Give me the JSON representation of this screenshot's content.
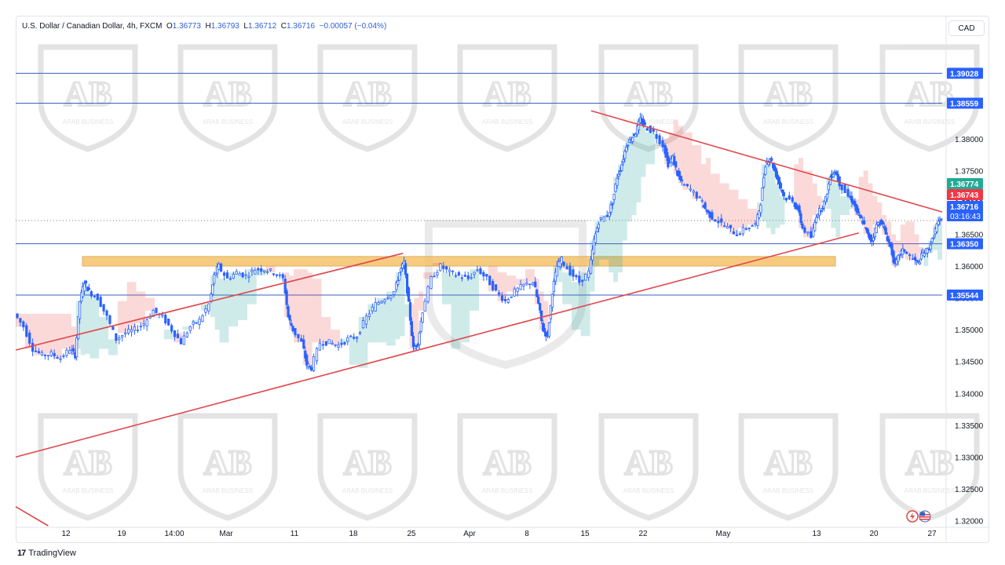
{
  "header": {
    "symbol": "U.S. Dollar / Canadian Dollar, 4h, FXCM",
    "o_label": "O",
    "o_value": "1.36773",
    "h_label": "H",
    "h_value": "1.36793",
    "l_label": "L",
    "l_value": "1.36712",
    "c_label": "C",
    "c_value": "1.36716",
    "change": "−0.00057 (−0.04%)"
  },
  "currency_button": "CAD",
  "footer": {
    "brand": "TradingView",
    "logo_mark": "17"
  },
  "watermark": {
    "text": "ARAB BUSINESS"
  },
  "colors": {
    "up": "#2962ff",
    "down": "#2962ff",
    "hline": "#3a5fbf",
    "trendline": "#e0474c",
    "zone_fill": "#f5c26b",
    "zone_stroke": "#d9a341",
    "cloud_green": "#26a69a",
    "cloud_red": "#ef5350",
    "price_tag": "#2962ff",
    "up_tag": "#22ab94",
    "down_tag": "#f23645"
  },
  "chart_data": {
    "type": "candlestick",
    "instrument": "USDCAD",
    "timeframe": "4h",
    "ylim": [
      1.3192,
      1.3944
    ],
    "y_ticks": [
      "1.38000",
      "1.37500",
      "1.37000",
      "1.36500",
      "1.36000",
      "1.35500",
      "1.35000",
      "1.34500",
      "1.34000",
      "1.33500",
      "1.33000",
      "1.32500",
      "1.32000"
    ],
    "x_ticks": [
      "12",
      "19",
      "14:00",
      "Mar",
      "11",
      "18",
      "25",
      "Apr",
      "8",
      "15",
      "22",
      "May",
      "13",
      "20",
      "27"
    ],
    "horizontal_levels": [
      {
        "label": "1.39028",
        "value": 1.39028
      },
      {
        "label": "1.38559",
        "value": 1.38559
      },
      {
        "label": "1.36350",
        "value": 1.3635
      },
      {
        "label": "1.35544",
        "value": 1.35544
      }
    ],
    "price_tags": [
      {
        "label": "1.36774",
        "value": 1.36774,
        "kind": "up"
      },
      {
        "label": "1.36743",
        "value": 1.36743,
        "kind": "down"
      },
      {
        "label": "1.36716",
        "value": 1.36716,
        "kind": "last",
        "countdown": "03:16:43"
      }
    ],
    "support_zone": {
      "x_from": "Feb 13",
      "x_to": "May 17",
      "y_from": 1.36,
      "y_to": 1.3615
    },
    "trendlines": [
      {
        "from": [
          0,
          1.3468
        ],
        "to": [
          0.418,
          1.362
        ]
      },
      {
        "from": [
          0,
          1.33
        ],
        "to": [
          0.91,
          1.3652
        ]
      },
      {
        "from": [
          0.621,
          1.3844
        ],
        "to": [
          1.0,
          1.3685
        ]
      },
      {
        "from": [
          0,
          1.3222
        ],
        "to": [
          0.035,
          1.3192
        ]
      }
    ],
    "close_path": [
      [
        0.0,
        1.3525
      ],
      [
        0.01,
        1.3505
      ],
      [
        0.02,
        1.347
      ],
      [
        0.03,
        1.346
      ],
      [
        0.04,
        1.3462
      ],
      [
        0.05,
        1.3455
      ],
      [
        0.06,
        1.347
      ],
      [
        0.065,
        1.346
      ],
      [
        0.07,
        1.3545
      ],
      [
        0.075,
        1.3575
      ],
      [
        0.08,
        1.356
      ],
      [
        0.09,
        1.355
      ],
      [
        0.1,
        1.352
      ],
      [
        0.11,
        1.3485
      ],
      [
        0.12,
        1.3495
      ],
      [
        0.13,
        1.35
      ],
      [
        0.14,
        1.351
      ],
      [
        0.15,
        1.353
      ],
      [
        0.16,
        1.352
      ],
      [
        0.17,
        1.35
      ],
      [
        0.18,
        1.348
      ],
      [
        0.19,
        1.3505
      ],
      [
        0.2,
        1.3515
      ],
      [
        0.21,
        1.354
      ],
      [
        0.215,
        1.3585
      ],
      [
        0.22,
        1.36
      ],
      [
        0.23,
        1.358
      ],
      [
        0.24,
        1.359
      ],
      [
        0.25,
        1.3585
      ],
      [
        0.26,
        1.3595
      ],
      [
        0.27,
        1.3595
      ],
      [
        0.28,
        1.359
      ],
      [
        0.29,
        1.358
      ],
      [
        0.295,
        1.352
      ],
      [
        0.3,
        1.35
      ],
      [
        0.31,
        1.348
      ],
      [
        0.315,
        1.3445
      ],
      [
        0.32,
        1.344
      ],
      [
        0.33,
        1.348
      ],
      [
        0.34,
        1.348
      ],
      [
        0.35,
        1.3475
      ],
      [
        0.36,
        1.3485
      ],
      [
        0.37,
        1.349
      ],
      [
        0.38,
        1.352
      ],
      [
        0.39,
        1.354
      ],
      [
        0.4,
        1.355
      ],
      [
        0.41,
        1.356
      ],
      [
        0.415,
        1.359
      ],
      [
        0.42,
        1.3605
      ],
      [
        0.425,
        1.354
      ],
      [
        0.43,
        1.347
      ],
      [
        0.435,
        1.348
      ],
      [
        0.44,
        1.353
      ],
      [
        0.45,
        1.358
      ],
      [
        0.46,
        1.36
      ],
      [
        0.47,
        1.359
      ],
      [
        0.48,
        1.3585
      ],
      [
        0.49,
        1.358
      ],
      [
        0.5,
        1.3595
      ],
      [
        0.51,
        1.358
      ],
      [
        0.52,
        1.356
      ],
      [
        0.53,
        1.3545
      ],
      [
        0.54,
        1.356
      ],
      [
        0.55,
        1.357
      ],
      [
        0.56,
        1.3575
      ],
      [
        0.565,
        1.354
      ],
      [
        0.57,
        1.35
      ],
      [
        0.575,
        1.349
      ],
      [
        0.58,
        1.356
      ],
      [
        0.585,
        1.36
      ],
      [
        0.59,
        1.361
      ],
      [
        0.6,
        1.359
      ],
      [
        0.61,
        1.3575
      ],
      [
        0.62,
        1.359
      ],
      [
        0.625,
        1.364
      ],
      [
        0.63,
        1.367
      ],
      [
        0.64,
        1.368
      ],
      [
        0.645,
        1.37
      ],
      [
        0.65,
        1.374
      ],
      [
        0.655,
        1.376
      ],
      [
        0.66,
        1.379
      ],
      [
        0.665,
        1.38
      ],
      [
        0.67,
        1.381
      ],
      [
        0.675,
        1.383
      ],
      [
        0.68,
        1.382
      ],
      [
        0.69,
        1.381
      ],
      [
        0.7,
        1.379
      ],
      [
        0.705,
        1.376
      ],
      [
        0.71,
        1.377
      ],
      [
        0.715,
        1.3745
      ],
      [
        0.72,
        1.373
      ],
      [
        0.73,
        1.372
      ],
      [
        0.74,
        1.3705
      ],
      [
        0.745,
        1.369
      ],
      [
        0.75,
        1.368
      ],
      [
        0.76,
        1.367
      ],
      [
        0.77,
        1.366
      ],
      [
        0.78,
        1.365
      ],
      [
        0.79,
        1.366
      ],
      [
        0.8,
        1.3665
      ],
      [
        0.805,
        1.37
      ],
      [
        0.81,
        1.376
      ],
      [
        0.815,
        1.377
      ],
      [
        0.82,
        1.375
      ],
      [
        0.825,
        1.373
      ],
      [
        0.83,
        1.371
      ],
      [
        0.84,
        1.37
      ],
      [
        0.845,
        1.369
      ],
      [
        0.85,
        1.366
      ],
      [
        0.86,
        1.3645
      ],
      [
        0.865,
        1.368
      ],
      [
        0.87,
        1.369
      ],
      [
        0.875,
        1.3705
      ],
      [
        0.88,
        1.374
      ],
      [
        0.885,
        1.375
      ],
      [
        0.89,
        1.373
      ],
      [
        0.9,
        1.371
      ],
      [
        0.905,
        1.37
      ],
      [
        0.91,
        1.368
      ],
      [
        0.915,
        1.367
      ],
      [
        0.92,
        1.365
      ],
      [
        0.925,
        1.364
      ],
      [
        0.93,
        1.3665
      ],
      [
        0.935,
        1.367
      ],
      [
        0.94,
        1.365
      ],
      [
        0.945,
        1.363
      ],
      [
        0.95,
        1.36
      ],
      [
        0.955,
        1.362
      ],
      [
        0.96,
        1.3625
      ],
      [
        0.97,
        1.361
      ],
      [
        0.975,
        1.3605
      ],
      [
        0.98,
        1.362
      ],
      [
        0.985,
        1.3625
      ],
      [
        0.99,
        1.364
      ],
      [
        0.995,
        1.3665
      ],
      [
        1.0,
        1.3672
      ]
    ]
  }
}
